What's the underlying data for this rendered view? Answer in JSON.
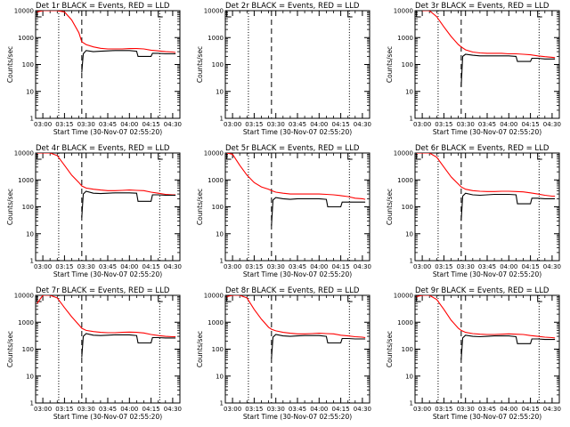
{
  "charts": [
    {
      "title": "Det 1r BLACK = Events, RED = LLD",
      "ylabel": "Counts/sec",
      "xlabel": "Start Time (30-Nov-07 02:55:20)"
    },
    {
      "title": "Det 2r BLACK = Events, RED = LLD",
      "ylabel": "Counts/sec",
      "xlabel": "Start Time (30-Nov-07 02:55:20)"
    },
    {
      "title": "Det 3r BLACK = Events, RED = LLD",
      "ylabel": "Counts/sec",
      "xlabel": "Start Time (30-Nov-07 02:55:20)"
    },
    {
      "title": "Det 4r BLACK = Events, RED = LLD",
      "ylabel": "Counts/sec",
      "xlabel": "Start Time (30-Nov-07 02:55:20)"
    },
    {
      "title": "Det 5r BLACK = Events, RED = LLD",
      "ylabel": "Counts/sec",
      "xlabel": "Start Time (30-Nov-07 02:55:20)"
    },
    {
      "title": "Det 6r BLACK = Events, RED = LLD",
      "ylabel": "Counts/sec",
      "xlabel": "Start Time (30-Nov-07 02:55:20)"
    },
    {
      "title": "Det 7r BLACK = Events, RED = LLD",
      "ylabel": "Counts/sec",
      "xlabel": "Start Time (30-Nov-07 02:55:20)"
    },
    {
      "title": "Det 8r BLACK = Events, RED = LLD",
      "ylabel": "Counts/sec",
      "xlabel": "Start Time (30-Nov-07 02:55:20)"
    },
    {
      "title": "Det 9r BLACK = Events, RED = LLD",
      "ylabel": "Counts/sec",
      "xlabel": "Start Time (30-Nov-07 02:55:20)"
    }
  ],
  "colors": {
    "events": "#000000",
    "lld": "#ff0000"
  },
  "chart_data": [
    {
      "type": "line",
      "panel": 1,
      "x_ticks": [
        "03:00",
        "03:15",
        "03:30",
        "03:45",
        "04:00",
        "04:15",
        "04:30"
      ],
      "y_ticks": [
        "1",
        "10",
        "100",
        "1000",
        "10000"
      ],
      "yscale": "log",
      "ylim": [
        1,
        10000
      ],
      "xlim": [
        "02:55",
        "04:35"
      ],
      "dotted_lines": [
        "03:11",
        "04:21"
      ],
      "dashed_lines": [
        "03:27"
      ],
      "series": [
        {
          "name": "LLD",
          "x": [
            "02:56",
            "03:00",
            "03:05",
            "03:10",
            "03:15",
            "03:20",
            "03:25",
            "03:27",
            "03:30",
            "03:35",
            "03:40",
            "03:45",
            "03:50",
            "03:55",
            "04:00",
            "04:05",
            "04:10",
            "04:15",
            "04:20",
            "04:25",
            "04:30",
            "04:32"
          ],
          "y": [
            9000,
            10000,
            10000,
            10000,
            9000,
            4500,
            1500,
            700,
            550,
            450,
            400,
            380,
            380,
            380,
            390,
            390,
            380,
            340,
            320,
            300,
            290,
            280
          ]
        },
        {
          "name": "Events",
          "x": [
            "03:27",
            "03:28",
            "03:30",
            "03:35",
            "03:40",
            "03:45",
            "03:50",
            "03:55",
            "04:00",
            "04:05",
            "04:06",
            "04:15",
            "04:16",
            "04:20",
            "04:25",
            "04:32"
          ],
          "y": [
            50,
            250,
            330,
            300,
            310,
            320,
            330,
            330,
            330,
            310,
            200,
            200,
            260,
            260,
            250,
            250
          ]
        }
      ]
    },
    {
      "type": "line",
      "panel": 2,
      "x_ticks": [
        "03:00",
        "03:15",
        "03:30",
        "03:45",
        "04:00",
        "04:15",
        "04:30"
      ],
      "y_ticks": [
        "1",
        "10",
        "100",
        "1000",
        "10000"
      ],
      "yscale": "log",
      "ylim": [
        1,
        10000
      ],
      "xlim": [
        "02:55",
        "04:35"
      ],
      "dotted_lines": [
        "03:11",
        "04:21"
      ],
      "dashed_lines": [
        "03:27"
      ],
      "series": []
    },
    {
      "type": "line",
      "panel": 3,
      "x_ticks": [
        "03:00",
        "03:15",
        "03:30",
        "03:45",
        "04:00",
        "04:15",
        "04:30"
      ],
      "y_ticks": [
        "1",
        "10",
        "100",
        "1000",
        "10000"
      ],
      "yscale": "log",
      "ylim": [
        1,
        10000
      ],
      "xlim": [
        "02:55",
        "04:35"
      ],
      "dotted_lines": [
        "03:11",
        "04:21"
      ],
      "dashed_lines": [
        "03:27"
      ],
      "series": [
        {
          "name": "LLD",
          "x": [
            "03:00",
            "03:05",
            "03:10",
            "03:15",
            "03:20",
            "03:25",
            "03:27",
            "03:30",
            "03:35",
            "03:40",
            "03:45",
            "03:50",
            "03:55",
            "04:00",
            "04:05",
            "04:10",
            "04:15",
            "04:20",
            "04:25",
            "04:30",
            "04:32"
          ],
          "y": [
            10000,
            10000,
            6000,
            2500,
            1100,
            550,
            450,
            350,
            290,
            270,
            260,
            260,
            260,
            250,
            250,
            240,
            230,
            210,
            195,
            185,
            180
          ]
        },
        {
          "name": "Events",
          "x": [
            "03:27",
            "03:28",
            "03:30",
            "03:35",
            "03:40",
            "03:45",
            "03:50",
            "03:55",
            "04:00",
            "04:05",
            "04:06",
            "04:15",
            "04:16",
            "04:20",
            "04:25",
            "04:32"
          ],
          "y": [
            15,
            200,
            240,
            220,
            210,
            210,
            210,
            210,
            210,
            200,
            130,
            130,
            170,
            170,
            160,
            160
          ]
        }
      ]
    },
    {
      "type": "line",
      "panel": 4,
      "x_ticks": [
        "03:00",
        "03:15",
        "03:30",
        "03:45",
        "04:00",
        "04:15",
        "04:30"
      ],
      "y_ticks": [
        "1",
        "10",
        "100",
        "1000",
        "10000"
      ],
      "yscale": "log",
      "ylim": [
        1,
        10000
      ],
      "xlim": [
        "02:55",
        "04:35"
      ],
      "dotted_lines": [
        "03:11",
        "04:21"
      ],
      "dashed_lines": [
        "03:27"
      ],
      "series": [
        {
          "name": "LLD",
          "x": [
            "02:56",
            "03:00",
            "03:05",
            "03:10",
            "03:15",
            "03:20",
            "03:25",
            "03:27",
            "03:30",
            "03:35",
            "03:40",
            "03:45",
            "03:50",
            "03:55",
            "04:00",
            "04:05",
            "04:10",
            "04:15",
            "04:20",
            "04:25",
            "04:30",
            "04:32"
          ],
          "y": [
            10000,
            10000,
            10000,
            8000,
            3500,
            1500,
            800,
            600,
            500,
            450,
            420,
            400,
            400,
            410,
            420,
            410,
            400,
            350,
            320,
            290,
            280,
            280
          ]
        },
        {
          "name": "Events",
          "x": [
            "03:27",
            "03:28",
            "03:30",
            "03:35",
            "03:40",
            "03:45",
            "03:50",
            "03:55",
            "04:00",
            "04:05",
            "04:06",
            "04:15",
            "04:16",
            "04:20",
            "04:25",
            "04:32"
          ],
          "y": [
            40,
            300,
            380,
            320,
            310,
            320,
            330,
            330,
            330,
            320,
            160,
            160,
            280,
            280,
            270,
            270
          ]
        }
      ]
    },
    {
      "type": "line",
      "panel": 5,
      "x_ticks": [
        "03:00",
        "03:15",
        "03:30",
        "03:45",
        "04:00",
        "04:15",
        "04:30"
      ],
      "y_ticks": [
        "1",
        "10",
        "100",
        "1000",
        "10000"
      ],
      "yscale": "log",
      "ylim": [
        1,
        10000
      ],
      "xlim": [
        "02:55",
        "04:35"
      ],
      "dotted_lines": [
        "03:11",
        "04:21"
      ],
      "dashed_lines": [
        "03:27"
      ],
      "series": [
        {
          "name": "LLD",
          "x": [
            "02:56",
            "03:00",
            "03:05",
            "03:10",
            "03:15",
            "03:20",
            "03:25",
            "03:27",
            "03:30",
            "03:35",
            "03:40",
            "03:45",
            "03:50",
            "03:55",
            "04:00",
            "04:05",
            "04:10",
            "04:15",
            "04:20",
            "04:25",
            "04:30",
            "04:32"
          ],
          "y": [
            10000,
            9000,
            3500,
            1500,
            800,
            550,
            450,
            400,
            350,
            320,
            300,
            300,
            300,
            300,
            300,
            290,
            280,
            260,
            240,
            210,
            200,
            190
          ]
        },
        {
          "name": "Events",
          "x": [
            "03:27",
            "03:28",
            "03:30",
            "03:35",
            "03:40",
            "03:45",
            "03:50",
            "03:55",
            "04:00",
            "04:05",
            "04:06",
            "04:15",
            "04:16",
            "04:20",
            "04:25",
            "04:32"
          ],
          "y": [
            20,
            180,
            220,
            200,
            190,
            200,
            200,
            200,
            200,
            190,
            100,
            100,
            150,
            150,
            150,
            150
          ]
        }
      ]
    },
    {
      "type": "line",
      "panel": 6,
      "x_ticks": [
        "03:00",
        "03:15",
        "03:30",
        "03:45",
        "04:00",
        "04:15",
        "04:30"
      ],
      "y_ticks": [
        "1",
        "10",
        "100",
        "1000",
        "10000"
      ],
      "yscale": "log",
      "ylim": [
        1,
        10000
      ],
      "xlim": [
        "02:55",
        "04:35"
      ],
      "dotted_lines": [
        "03:11",
        "04:21"
      ],
      "dashed_lines": [
        "03:27"
      ],
      "series": [
        {
          "name": "LLD",
          "x": [
            "02:56",
            "03:00",
            "03:05",
            "03:10",
            "03:15",
            "03:20",
            "03:25",
            "03:27",
            "03:30",
            "03:35",
            "03:40",
            "03:45",
            "03:50",
            "03:55",
            "04:00",
            "04:05",
            "04:10",
            "04:15",
            "04:20",
            "04:25",
            "04:30",
            "04:32"
          ],
          "y": [
            10000,
            10000,
            10000,
            7000,
            3000,
            1300,
            700,
            550,
            450,
            400,
            380,
            370,
            370,
            380,
            380,
            370,
            360,
            330,
            300,
            270,
            250,
            250
          ]
        },
        {
          "name": "Events",
          "x": [
            "03:27",
            "03:28",
            "03:30",
            "03:35",
            "03:40",
            "03:45",
            "03:50",
            "03:55",
            "04:00",
            "04:05",
            "04:06",
            "04:15",
            "04:16",
            "04:20",
            "04:25",
            "04:32"
          ],
          "y": [
            30,
            250,
            320,
            280,
            270,
            280,
            290,
            290,
            290,
            280,
            130,
            130,
            210,
            210,
            200,
            200
          ]
        }
      ]
    },
    {
      "type": "line",
      "panel": 7,
      "x_ticks": [
        "03:00",
        "03:15",
        "03:30",
        "03:45",
        "04:00",
        "04:15",
        "04:30"
      ],
      "y_ticks": [
        "1",
        "10",
        "100",
        "1000",
        "10000"
      ],
      "yscale": "log",
      "ylim": [
        1,
        10000
      ],
      "xlim": [
        "02:55",
        "04:35"
      ],
      "dotted_lines": [
        "03:11",
        "04:21"
      ],
      "dashed_lines": [
        "03:27"
      ],
      "series": [
        {
          "name": "LLD",
          "x": [
            "02:56",
            "03:00",
            "03:05",
            "03:10",
            "03:15",
            "03:20",
            "03:25",
            "03:27",
            "03:30",
            "03:35",
            "03:40",
            "03:45",
            "03:50",
            "03:55",
            "04:00",
            "04:05",
            "04:10",
            "04:15",
            "04:20",
            "04:25",
            "04:30",
            "04:32"
          ],
          "y": [
            5000,
            10000,
            10000,
            8000,
            3500,
            1600,
            800,
            600,
            500,
            450,
            420,
            410,
            410,
            420,
            430,
            420,
            400,
            350,
            320,
            300,
            290,
            290
          ]
        },
        {
          "name": "Events",
          "x": [
            "03:27",
            "03:28",
            "03:30",
            "03:35",
            "03:40",
            "03:45",
            "03:50",
            "03:55",
            "04:00",
            "04:05",
            "04:06",
            "04:15",
            "04:16",
            "04:20",
            "04:25",
            "04:32"
          ],
          "y": [
            50,
            300,
            380,
            330,
            320,
            330,
            340,
            340,
            340,
            320,
            170,
            170,
            270,
            270,
            260,
            260
          ]
        }
      ]
    },
    {
      "type": "line",
      "panel": 8,
      "x_ticks": [
        "03:00",
        "03:15",
        "03:30",
        "03:45",
        "04:00",
        "04:15",
        "04:30"
      ],
      "y_ticks": [
        "1",
        "10",
        "100",
        "1000",
        "10000"
      ],
      "yscale": "log",
      "ylim": [
        1,
        10000
      ],
      "xlim": [
        "02:55",
        "04:35"
      ],
      "dotted_lines": [
        "03:11",
        "04:21"
      ],
      "dashed_lines": [
        "03:27"
      ],
      "series": [
        {
          "name": "LLD",
          "x": [
            "02:56",
            "03:00",
            "03:05",
            "03:10",
            "03:15",
            "03:20",
            "03:25",
            "03:27",
            "03:30",
            "03:35",
            "03:40",
            "03:45",
            "03:50",
            "03:55",
            "04:00",
            "04:05",
            "04:10",
            "04:15",
            "04:20",
            "04:25",
            "04:30",
            "04:32"
          ],
          "y": [
            9000,
            10000,
            10000,
            8000,
            3000,
            1300,
            650,
            550,
            480,
            420,
            390,
            370,
            370,
            380,
            390,
            380,
            370,
            330,
            310,
            290,
            280,
            270
          ]
        },
        {
          "name": "Events",
          "x": [
            "03:27",
            "03:28",
            "03:30",
            "03:35",
            "03:40",
            "03:45",
            "03:50",
            "03:55",
            "04:00",
            "04:05",
            "04:06",
            "04:15",
            "04:16",
            "04:20",
            "04:25",
            "04:32"
          ],
          "y": [
            45,
            280,
            350,
            310,
            300,
            310,
            320,
            320,
            320,
            300,
            170,
            170,
            250,
            250,
            240,
            240
          ]
        }
      ]
    },
    {
      "type": "line",
      "panel": 9,
      "x_ticks": [
        "03:00",
        "03:15",
        "03:30",
        "03:45",
        "04:00",
        "04:15",
        "04:30"
      ],
      "y_ticks": [
        "1",
        "10",
        "100",
        "1000",
        "10000"
      ],
      "yscale": "log",
      "ylim": [
        1,
        10000
      ],
      "xlim": [
        "02:55",
        "04:35"
      ],
      "dotted_lines": [
        "03:11",
        "04:21"
      ],
      "dashed_lines": [
        "03:27"
      ],
      "series": [
        {
          "name": "LLD",
          "x": [
            "02:56",
            "03:00",
            "03:05",
            "03:10",
            "03:15",
            "03:20",
            "03:25",
            "03:27",
            "03:30",
            "03:35",
            "03:40",
            "03:45",
            "03:50",
            "03:55",
            "04:00",
            "04:05",
            "04:10",
            "04:15",
            "04:20",
            "04:25",
            "04:30",
            "04:32"
          ],
          "y": [
            9000,
            10000,
            10000,
            7000,
            3000,
            1200,
            600,
            500,
            420,
            380,
            360,
            350,
            350,
            360,
            370,
            360,
            350,
            320,
            300,
            280,
            270,
            260
          ]
        },
        {
          "name": "Events",
          "x": [
            "03:27",
            "03:28",
            "03:30",
            "03:35",
            "03:40",
            "03:45",
            "03:50",
            "03:55",
            "04:00",
            "04:05",
            "04:06",
            "04:15",
            "04:16",
            "04:20",
            "04:25",
            "04:32"
          ],
          "y": [
            40,
            260,
            330,
            300,
            290,
            300,
            310,
            310,
            310,
            290,
            160,
            160,
            240,
            240,
            230,
            230
          ]
        }
      ]
    }
  ]
}
